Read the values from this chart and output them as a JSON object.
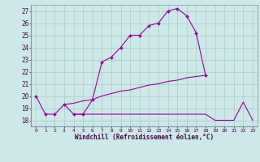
{
  "x": [
    0,
    1,
    2,
    3,
    4,
    5,
    6,
    7,
    8,
    9,
    10,
    11,
    12,
    13,
    14,
    15,
    16,
    17,
    18,
    19,
    20,
    21,
    22,
    23
  ],
  "y1": [
    20.0,
    18.5,
    18.5,
    19.3,
    18.5,
    18.5,
    19.7,
    22.8,
    23.2,
    24.0,
    25.0,
    25.0,
    25.8,
    26.0,
    27.0,
    27.2,
    26.6,
    25.2,
    21.7,
    null,
    null,
    null,
    null,
    null
  ],
  "y2": [
    null,
    null,
    null,
    19.3,
    19.4,
    19.6,
    19.7,
    20.0,
    20.2,
    20.4,
    20.5,
    20.7,
    20.9,
    21.0,
    21.2,
    21.3,
    21.5,
    21.6,
    21.7,
    null,
    null,
    null,
    null,
    null
  ],
  "y3": [
    null,
    null,
    null,
    null,
    18.5,
    18.5,
    18.5,
    18.5,
    18.5,
    18.5,
    18.5,
    18.5,
    18.5,
    18.5,
    18.5,
    18.5,
    18.5,
    18.5,
    18.5,
    18.0,
    18.0,
    18.0,
    19.5,
    18.0
  ],
  "background_color": "#cce8e8",
  "grid_color": "#aacccc",
  "line_color": "#990099",
  "xlabel": "Windchill (Refroidissement éolien,°C)",
  "xlim": [
    -0.5,
    23.5
  ],
  "ylim": [
    17.5,
    27.5
  ],
  "ytick_values": [
    18,
    19,
    20,
    21,
    22,
    23,
    24,
    25,
    26,
    27
  ]
}
